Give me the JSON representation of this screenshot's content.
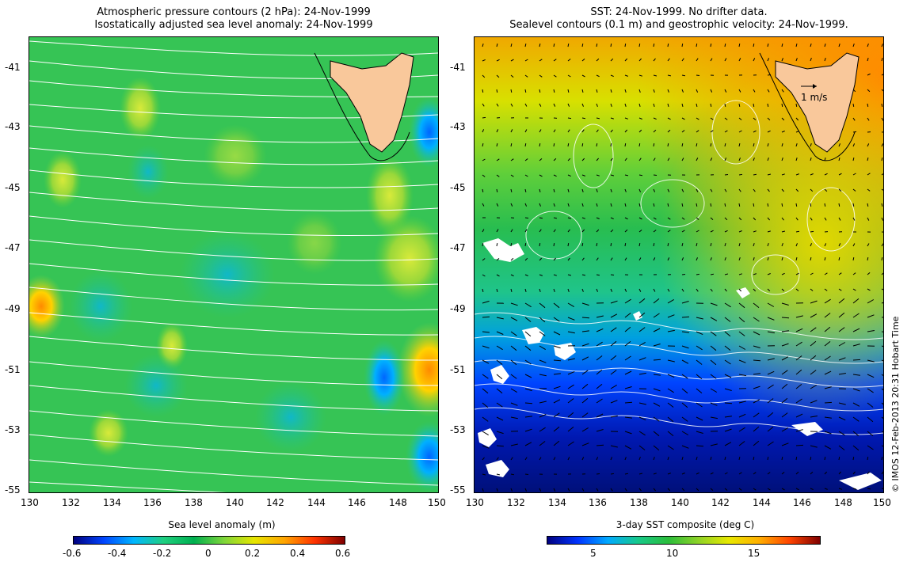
{
  "left_panel": {
    "title_line1": "Atmospheric pressure contours (2 hPa): 24-Nov-1999",
    "title_line2": "Isostatically adjusted sea level anomaly: 24-Nov-1999",
    "colorbar": {
      "label": "Sea level anomaly (m)",
      "ticks": [
        "-0.6",
        "-0.4",
        "-0.2",
        "0",
        "0.2",
        "0.4",
        "0.6"
      ],
      "range": [
        -0.6,
        0.6
      ]
    }
  },
  "right_panel": {
    "title_line1": "SST: 24-Nov-1999. No drifter data.",
    "title_line2": "Sealevel contours (0.1 m) and geostrophic velocity: 24-Nov-1999.",
    "velocity_scale_label": "1 m/s",
    "colorbar": {
      "label": "3-day SST composite (deg C)",
      "ticks": [
        "5",
        "10",
        "15"
      ],
      "range": [
        2,
        19
      ]
    }
  },
  "axes": {
    "lat_ticks": [
      "-41",
      "-43",
      "-45",
      "-47",
      "-49",
      "-51",
      "-53",
      "-55"
    ],
    "lon_ticks": [
      "130",
      "132",
      "134",
      "136",
      "138",
      "140",
      "142",
      "144",
      "146",
      "148",
      "150"
    ],
    "lon_range": [
      130,
      150
    ],
    "lat_range": [
      -55,
      -40
    ]
  },
  "credit": "© IMOS 12-Feb-2013 20:31 Hobart Time",
  "colors": {
    "land": "#f9c89b",
    "contour": "#ffffff",
    "sla_scale": [
      "#00007f",
      "#0044ff",
      "#00b7ff",
      "#1fcf7f",
      "#00b050",
      "#7fd63a",
      "#e6e600",
      "#ffa500",
      "#ff3300",
      "#7f0000"
    ],
    "sst_scale": [
      "#00007f",
      "#0033ff",
      "#00aaff",
      "#17c98a",
      "#2bbd3b",
      "#8fd327",
      "#e8e800",
      "#ffae00",
      "#ff4400",
      "#7f0000"
    ]
  }
}
